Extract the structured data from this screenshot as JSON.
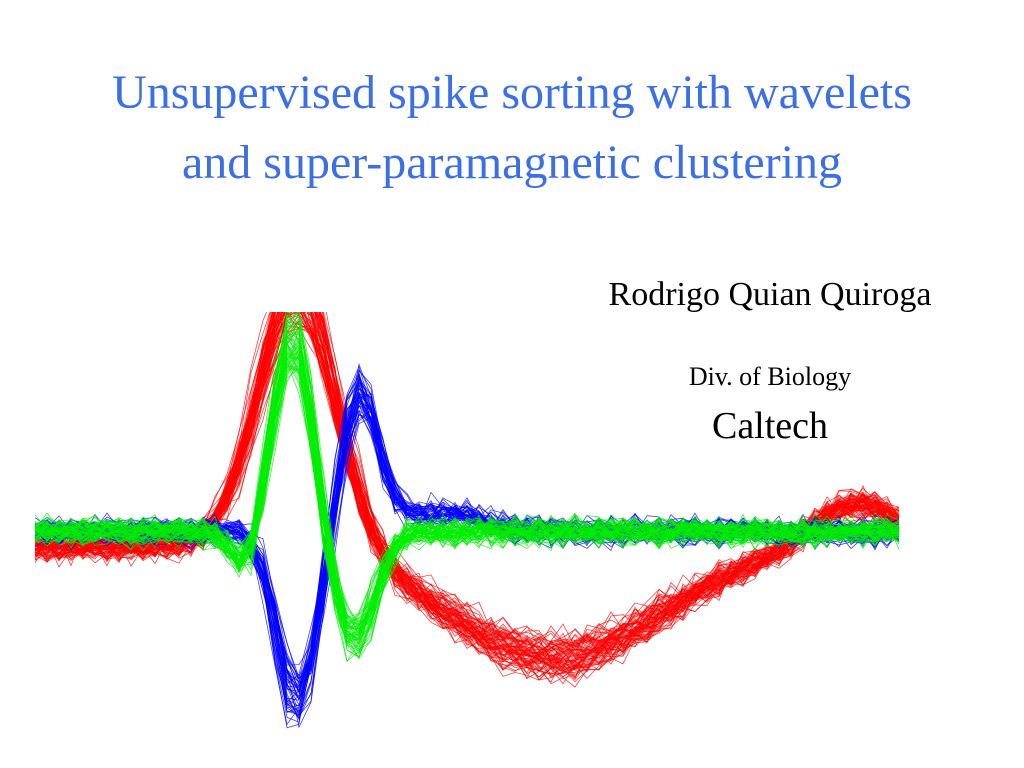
{
  "slide": {
    "title_line1": "Unsupervised spike sorting with wavelets",
    "title_line2": "and super-paramagnetic clustering",
    "author": "Rodrigo Quian Quiroga",
    "division": "Div. of Biology",
    "institution": "Caltech"
  },
  "colors": {
    "title": "#3b6fe6",
    "text": "#000000",
    "cluster_red": "#ff0000",
    "cluster_green": "#00ee00",
    "cluster_blue": "#0000ff"
  },
  "figure": {
    "icon": "spike-waveforms-figure",
    "clusters": [
      {
        "color": "#ff0000",
        "traces": 70
      },
      {
        "color": "#0000ff",
        "traces": 50
      },
      {
        "color": "#00ee00",
        "traces": 60
      }
    ]
  }
}
